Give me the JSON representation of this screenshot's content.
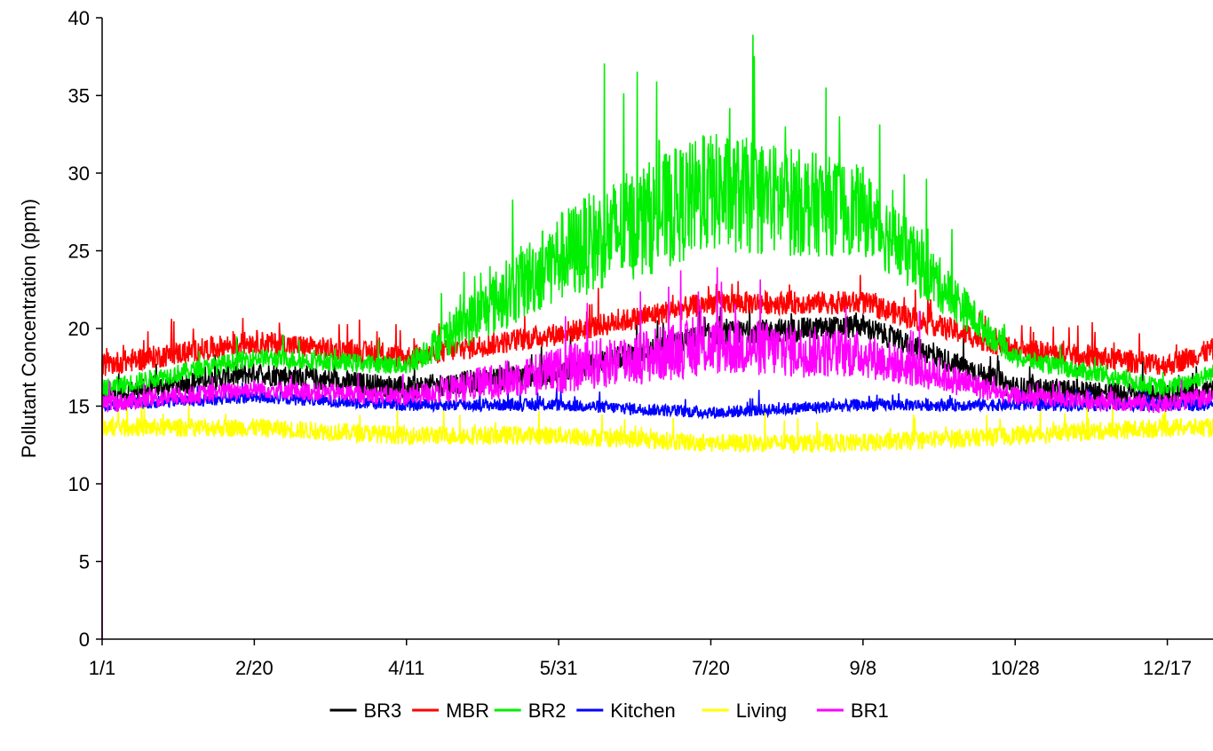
{
  "chart_data": {
    "type": "line",
    "title": "",
    "xlabel": "",
    "ylabel": "Pollutant Concentration (ppm)",
    "ylim": [
      0,
      40
    ],
    "xlim_days": [
      1,
      366
    ],
    "y_ticks": [
      0,
      5,
      10,
      15,
      20,
      25,
      30,
      35,
      40
    ],
    "x_ticks": [
      {
        "day": 1,
        "label": "1/1"
      },
      {
        "day": 51,
        "label": "2/20"
      },
      {
        "day": 101,
        "label": "4/11"
      },
      {
        "day": 151,
        "label": "5/31"
      },
      {
        "day": 201,
        "label": "7/20"
      },
      {
        "day": 251,
        "label": "9/8"
      },
      {
        "day": 301,
        "label": "10/28"
      },
      {
        "day": 351,
        "label": "12/17"
      }
    ],
    "grid": false,
    "legend_position": "bottom",
    "series": [
      {
        "name": "BR3",
        "color": "#000000",
        "x": [
          1,
          51,
          101,
          151,
          201,
          251,
          301,
          351,
          366
        ],
        "values": [
          15.5,
          17.0,
          16.0,
          17.0,
          19.5,
          20.0,
          16.0,
          15.5,
          16.0
        ]
      },
      {
        "name": "MBR",
        "color": "#ff0000",
        "x": [
          1,
          51,
          101,
          151,
          201,
          251,
          301,
          351,
          366
        ],
        "values": [
          17.5,
          19.0,
          18.0,
          19.5,
          21.5,
          21.5,
          18.5,
          17.5,
          18.5
        ]
      },
      {
        "name": "BR2",
        "color": "#00ee00",
        "x": [
          1,
          51,
          101,
          151,
          201,
          251,
          301,
          351,
          366
        ],
        "values": [
          16.0,
          18.0,
          17.5,
          24.0,
          28.0,
          27.0,
          18.0,
          16.0,
          17.0
        ]
      },
      {
        "name": "Kitchen",
        "color": "#0000ff",
        "x": [
          1,
          51,
          101,
          151,
          201,
          251,
          301,
          351,
          366
        ],
        "values": [
          15.0,
          15.5,
          15.0,
          15.0,
          14.5,
          15.0,
          15.0,
          15.0,
          15.0
        ]
      },
      {
        "name": "Living",
        "color": "#ffff00",
        "x": [
          1,
          51,
          101,
          151,
          201,
          251,
          301,
          351,
          366
        ],
        "values": [
          13.5,
          13.5,
          13.0,
          13.0,
          12.5,
          12.5,
          13.0,
          13.5,
          13.5
        ]
      },
      {
        "name": "BR1",
        "color": "#ff00ff",
        "x": [
          1,
          51,
          101,
          151,
          201,
          251,
          301,
          351,
          366
        ],
        "values": [
          15.0,
          16.0,
          15.5,
          17.0,
          18.5,
          18.0,
          15.5,
          15.0,
          15.5
        ]
      }
    ]
  }
}
